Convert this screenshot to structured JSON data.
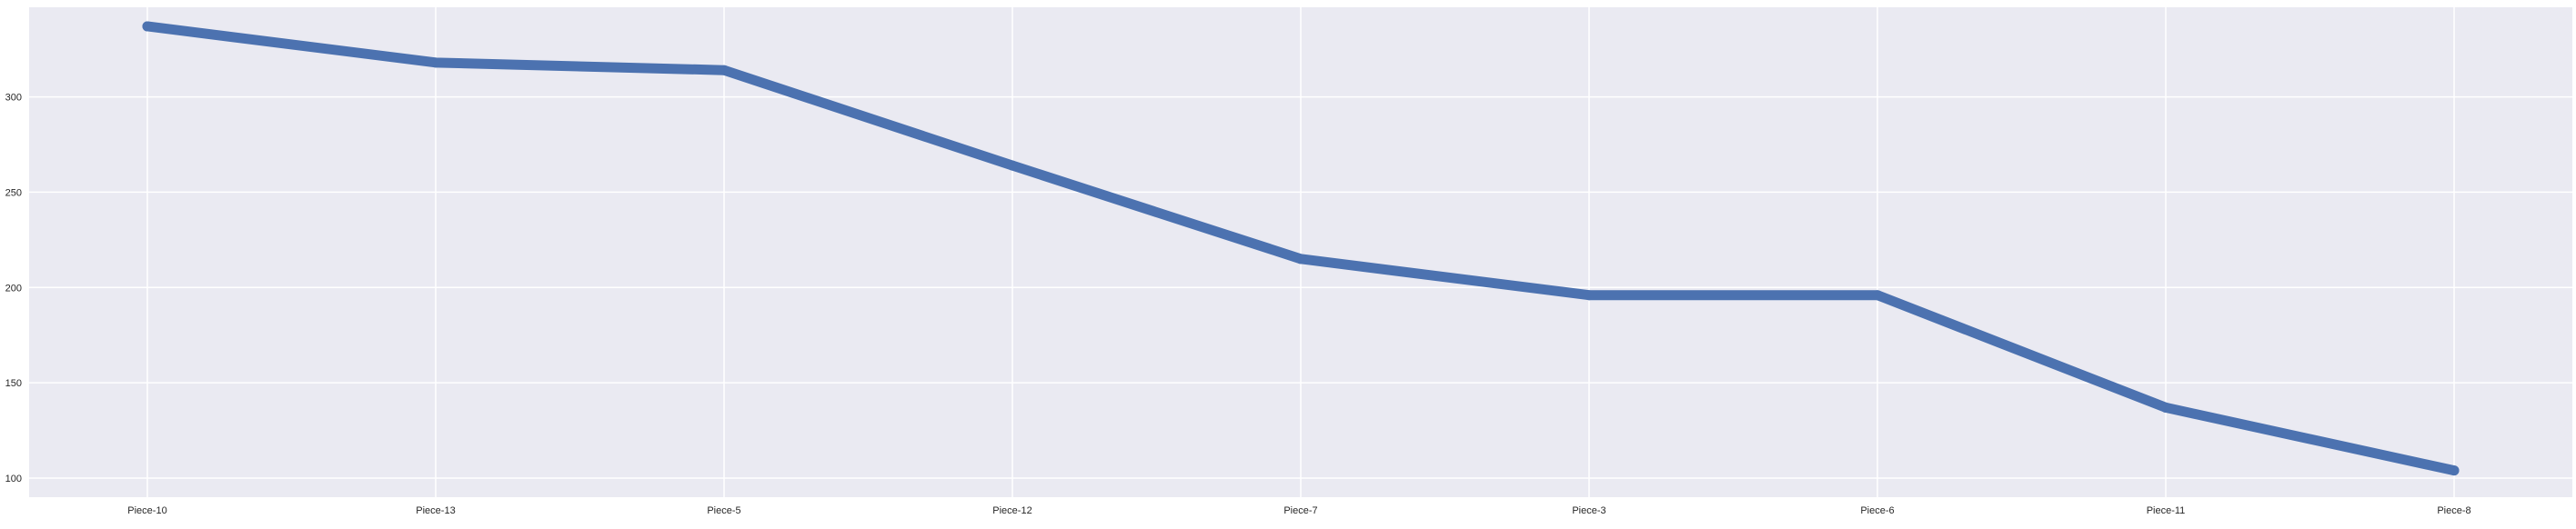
{
  "chart_data": {
    "type": "line",
    "title": "",
    "xlabel": "",
    "ylabel": "",
    "categories": [
      "Piece-10",
      "Piece-13",
      "Piece-5",
      "Piece-12",
      "Piece-7",
      "Piece-3",
      "Piece-6",
      "Piece-11",
      "Piece-8"
    ],
    "series": [
      {
        "values": [
          337,
          318,
          314,
          264,
          215,
          196,
          196,
          137,
          104
        ]
      }
    ],
    "yticks": [
      100,
      150,
      200,
      250,
      300
    ],
    "ylim": [
      90,
      347
    ],
    "grid": true,
    "legend": "none",
    "colors": {
      "background": "#eaeaf2",
      "grid": "#ffffff",
      "line": "#4c72b0",
      "text": "#262626"
    }
  }
}
